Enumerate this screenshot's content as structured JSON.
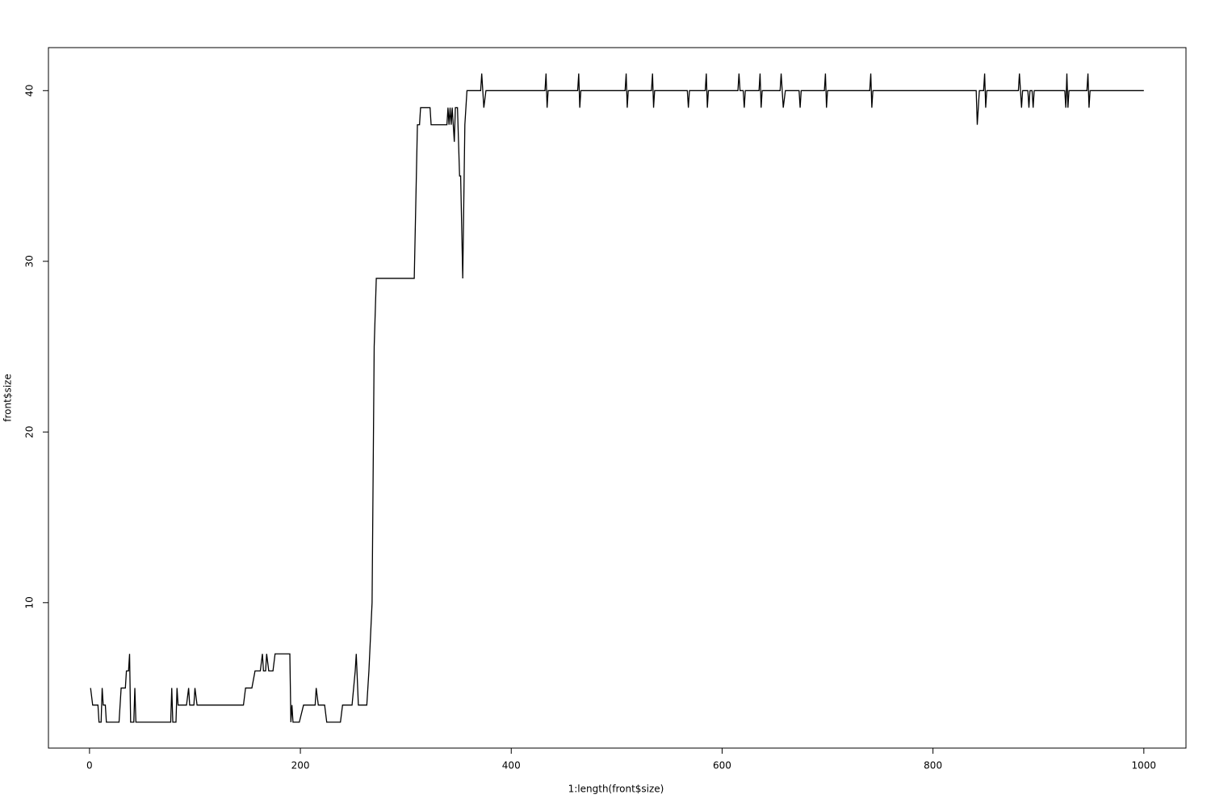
{
  "chart_data": {
    "type": "line",
    "x_label": "1:length(front$size)",
    "y_label": "front$size",
    "color": "#000000",
    "xlim": [
      -38.96,
      1039.96
    ],
    "ylim": [
      1.48,
      42.52
    ],
    "xticks": [
      0,
      200,
      400,
      600,
      800,
      1000
    ],
    "yticks": [
      10,
      20,
      30,
      40
    ],
    "series": [
      {
        "x": [
          1,
          3,
          8,
          9,
          11,
          12,
          13,
          15,
          16,
          28,
          30,
          34,
          35,
          37,
          38,
          39,
          42,
          43,
          44,
          77,
          78,
          79,
          82,
          83,
          84,
          92,
          94,
          95,
          99,
          100,
          102,
          146,
          148,
          154,
          157,
          162,
          164,
          165,
          167,
          168,
          170,
          174,
          176,
          190,
          191,
          192,
          193,
          199,
          203,
          214,
          215,
          217,
          223,
          225,
          238,
          240,
          249,
          252,
          253,
          255,
          263,
          265,
          268,
          270,
          272,
          308,
          311,
          313,
          314,
          323,
          324,
          339,
          340,
          341,
          342,
          343,
          344,
          346,
          347,
          349,
          351,
          352,
          354,
          356,
          358,
          371,
          372,
          374,
          376,
          432,
          433,
          434,
          435,
          463,
          464,
          465,
          466,
          508,
          509,
          510,
          511,
          533,
          534,
          535,
          536,
          567,
          568,
          569,
          584,
          585,
          586,
          587,
          615,
          616,
          617,
          620,
          621,
          622,
          635,
          636,
          637,
          638,
          655,
          656,
          658,
          660,
          673,
          674,
          675,
          697,
          698,
          699,
          700,
          740,
          741,
          742,
          743,
          841,
          842,
          844,
          848,
          849,
          850,
          851,
          881,
          882,
          884,
          885,
          890,
          891,
          892,
          894,
          895,
          896,
          925,
          926,
          927,
          928,
          929,
          946,
          947,
          948,
          949,
          1000
        ],
        "values": [
          5,
          4,
          4,
          3,
          3,
          5,
          4,
          4,
          3,
          3,
          5,
          5,
          6,
          6,
          7,
          3,
          3,
          5,
          3,
          3,
          5,
          3,
          3,
          5,
          4,
          4,
          5,
          4,
          4,
          5,
          4,
          4,
          5,
          5,
          6,
          6,
          7,
          6,
          6,
          7,
          6,
          6,
          7,
          7,
          3,
          4,
          3,
          3,
          4,
          4,
          5,
          4,
          4,
          3,
          3,
          4,
          4,
          6,
          7,
          4,
          4,
          6,
          10,
          25,
          29,
          29,
          38,
          38,
          39,
          39,
          38,
          38,
          39,
          38,
          39,
          38,
          39,
          37,
          39,
          39,
          35,
          35,
          29,
          38,
          40,
          40,
          41,
          39,
          40,
          40,
          41,
          39,
          40,
          40,
          41,
          39,
          40,
          40,
          41,
          39,
          40,
          40,
          41,
          39,
          40,
          40,
          39,
          40,
          40,
          41,
          39,
          40,
          40,
          41,
          40,
          40,
          39,
          40,
          40,
          41,
          39,
          40,
          40,
          41,
          39,
          40,
          40,
          39,
          40,
          40,
          41,
          39,
          40,
          40,
          41,
          39,
          40,
          40,
          38,
          40,
          40,
          41,
          39,
          40,
          40,
          41,
          39,
          40,
          40,
          39,
          40,
          40,
          39,
          40,
          40,
          39,
          41,
          39,
          40,
          40,
          41,
          39,
          40,
          40
        ]
      }
    ]
  }
}
